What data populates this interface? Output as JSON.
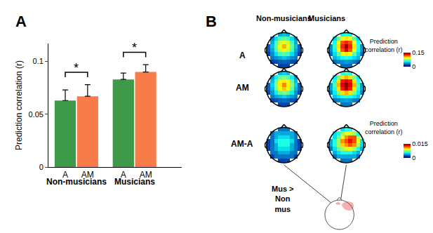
{
  "chart_data": [
    {
      "type": "bar",
      "title": "A",
      "ylabel": "Prediction correlation (r)",
      "categories": [
        "Non-musicians",
        "Musicians"
      ],
      "series": [
        {
          "name": "A",
          "color": "#3c9a48",
          "values": [
            0.063,
            0.083
          ],
          "errors": [
            0.01,
            0.006
          ]
        },
        {
          "name": "AM",
          "color": "#f77c4a",
          "values": [
            0.067,
            0.09
          ],
          "errors": [
            0.011,
            0.007
          ]
        }
      ],
      "ylim": [
        0,
        0.117
      ],
      "yticks": [
        0,
        0.05,
        0.1
      ],
      "annotations": [
        {
          "group": "Non-musicians",
          "between": [
            "A",
            "AM"
          ],
          "label": "*"
        },
        {
          "group": "Musicians",
          "between": [
            "A",
            "AM"
          ],
          "label": "*"
        }
      ]
    },
    {
      "type": "heatmap",
      "title": "B",
      "columns": [
        "Non-musicians",
        "Musicians"
      ],
      "rows": [
        "A",
        "AM",
        "AM-A"
      ],
      "colorbars": [
        {
          "rows": [
            "A",
            "AM"
          ],
          "title": [
            "Prediction",
            "correlation (r)"
          ],
          "range": [
            0,
            0.15
          ],
          "ticks": [
            0,
            0.15
          ]
        },
        {
          "rows": [
            "AM-A"
          ],
          "title": [
            "Prediction",
            "correlation (r)"
          ],
          "range": [
            0,
            0.015
          ],
          "ticks": [
            0,
            0.015
          ]
        }
      ],
      "maps": [
        {
          "row": "A",
          "column": "Non-musicians",
          "cells": [
            [
              null,
              null,
              null,
              0.02,
              0.02,
              0.02,
              null,
              null,
              null
            ],
            [
              null,
              0.02,
              0.022,
              0.025,
              0.027,
              0.025,
              0.022,
              0.02,
              null
            ],
            [
              null,
              0.03,
              0.035,
              0.04,
              0.045,
              0.04,
              0.035,
              0.03,
              null
            ],
            [
              0.02,
              0.035,
              0.05,
              0.065,
              0.07,
              0.065,
              0.05,
              0.035,
              0.02
            ],
            [
              0.025,
              0.04,
              0.065,
              0.085,
              0.095,
              0.085,
              0.065,
              0.04,
              0.025
            ],
            [
              0.025,
              0.045,
              0.07,
              0.09,
              0.105,
              0.09,
              0.07,
              0.045,
              0.025
            ],
            [
              null,
              0.04,
              0.065,
              0.085,
              0.09,
              0.085,
              0.065,
              0.04,
              null
            ],
            [
              null,
              0.035,
              0.05,
              0.065,
              0.07,
              0.065,
              0.05,
              0.035,
              null
            ],
            [
              null,
              null,
              null,
              0.04,
              0.045,
              0.04,
              null,
              null,
              null
            ]
          ]
        },
        {
          "row": "A",
          "column": "Musicians",
          "cells": [
            [
              null,
              null,
              null,
              0.028,
              0.028,
              0.028,
              null,
              null,
              null
            ],
            [
              null,
              0.028,
              0.031,
              0.035,
              0.038,
              0.035,
              0.031,
              0.028,
              null
            ],
            [
              null,
              0.042,
              0.049,
              0.056,
              0.063,
              0.056,
              0.049,
              0.042,
              null
            ],
            [
              0.028,
              0.049,
              0.07,
              0.091,
              0.098,
              0.091,
              0.07,
              0.049,
              0.028
            ],
            [
              0.035,
              0.056,
              0.091,
              0.119,
              0.133,
              0.119,
              0.091,
              0.056,
              0.035
            ],
            [
              0.035,
              0.063,
              0.098,
              0.126,
              0.147,
              0.126,
              0.098,
              0.063,
              0.035
            ],
            [
              null,
              0.056,
              0.091,
              0.119,
              0.126,
              0.119,
              0.091,
              0.056,
              null
            ],
            [
              null,
              0.049,
              0.07,
              0.091,
              0.098,
              0.091,
              0.07,
              0.049,
              null
            ],
            [
              null,
              null,
              null,
              0.056,
              0.063,
              0.056,
              null,
              null,
              null
            ]
          ]
        },
        {
          "row": "AM",
          "column": "Non-musicians",
          "cells": [
            [
              null,
              null,
              null,
              0.021,
              0.021,
              0.021,
              null,
              null,
              null
            ],
            [
              null,
              0.021,
              0.024,
              0.027,
              0.029,
              0.027,
              0.024,
              0.021,
              null
            ],
            [
              null,
              0.032,
              0.037,
              0.043,
              0.048,
              0.043,
              0.037,
              0.032,
              null
            ],
            [
              0.021,
              0.037,
              0.054,
              0.07,
              0.075,
              0.07,
              0.054,
              0.037,
              0.021
            ],
            [
              0.027,
              0.043,
              0.07,
              0.091,
              0.102,
              0.091,
              0.07,
              0.043,
              0.027
            ],
            [
              0.027,
              0.048,
              0.075,
              0.096,
              0.112,
              0.096,
              0.075,
              0.048,
              0.027
            ],
            [
              null,
              0.043,
              0.07,
              0.091,
              0.096,
              0.091,
              0.07,
              0.043,
              null
            ],
            [
              null,
              0.037,
              0.054,
              0.07,
              0.075,
              0.07,
              0.054,
              0.037,
              null
            ],
            [
              null,
              null,
              null,
              0.043,
              0.048,
              0.043,
              null,
              null,
              null
            ]
          ]
        },
        {
          "row": "AM",
          "column": "Musicians",
          "cells": [
            [
              null,
              null,
              null,
              0.03,
              0.03,
              0.03,
              null,
              null,
              null
            ],
            [
              null,
              0.03,
              0.033,
              0.038,
              0.04,
              0.038,
              0.033,
              0.03,
              null
            ],
            [
              null,
              0.045,
              0.053,
              0.06,
              0.068,
              0.06,
              0.053,
              0.045,
              null
            ],
            [
              0.03,
              0.053,
              0.075,
              0.098,
              0.105,
              0.098,
              0.075,
              0.053,
              0.03
            ],
            [
              0.038,
              0.06,
              0.098,
              0.128,
              0.143,
              0.128,
              0.098,
              0.06,
              0.038
            ],
            [
              0.038,
              0.068,
              0.105,
              0.135,
              0.15,
              0.135,
              0.105,
              0.068,
              0.038
            ],
            [
              null,
              0.06,
              0.098,
              0.128,
              0.135,
              0.128,
              0.098,
              0.06,
              null
            ],
            [
              null,
              0.053,
              0.075,
              0.098,
              0.105,
              0.098,
              0.075,
              0.053,
              null
            ],
            [
              null,
              null,
              null,
              0.06,
              0.068,
              0.06,
              null,
              null,
              null
            ]
          ]
        },
        {
          "row": "AM-A",
          "column": "Non-musicians",
          "cells": [
            [
              null,
              null,
              null,
              0.002,
              0.002,
              0.002,
              null,
              null,
              null
            ],
            [
              null,
              0.002,
              0.003,
              0.003,
              0.003,
              0.003,
              0.003,
              0.002,
              null
            ],
            [
              null,
              0.003,
              0.003,
              0.004,
              0.004,
              0.004,
              0.003,
              0.003,
              null
            ],
            [
              0.002,
              0.003,
              0.004,
              0.005,
              0.005,
              0.005,
              0.004,
              0.003,
              0.002
            ],
            [
              0.002,
              0.003,
              0.004,
              0.006,
              0.006,
              0.006,
              0.004,
              0.003,
              0.002
            ],
            [
              0.002,
              0.003,
              0.005,
              0.006,
              0.006,
              0.006,
              0.005,
              0.003,
              0.002
            ],
            [
              null,
              0.003,
              0.004,
              0.005,
              0.005,
              0.005,
              0.004,
              0.003,
              null
            ],
            [
              null,
              0.003,
              0.004,
              0.004,
              0.004,
              0.004,
              0.004,
              0.003,
              null
            ],
            [
              null,
              null,
              null,
              0.003,
              0.003,
              0.003,
              null,
              null,
              null
            ]
          ]
        },
        {
          "row": "AM-A",
          "column": "Musicians",
          "cells": [
            [
              null,
              null,
              null,
              0.003,
              0.003,
              0.003,
              null,
              null,
              null
            ],
            [
              null,
              0.003,
              0.004,
              0.004,
              0.004,
              0.004,
              0.004,
              0.003,
              null
            ],
            [
              null,
              0.004,
              0.005,
              0.006,
              0.006,
              0.006,
              0.005,
              0.004,
              null
            ],
            [
              0.003,
              0.005,
              0.007,
              0.008,
              0.009,
              0.009,
              0.008,
              0.006,
              0.004
            ],
            [
              0.004,
              0.006,
              0.008,
              0.01,
              0.011,
              0.012,
              0.011,
              0.008,
              0.005
            ],
            [
              0.004,
              0.006,
              0.008,
              0.011,
              0.012,
              0.013,
              0.012,
              0.009,
              0.005
            ],
            [
              null,
              0.005,
              0.007,
              0.009,
              0.011,
              0.012,
              0.012,
              0.008,
              null
            ],
            [
              null,
              0.005,
              0.006,
              0.008,
              0.009,
              0.009,
              0.008,
              0.006,
              null
            ],
            [
              null,
              null,
              null,
              0.005,
              0.006,
              0.006,
              null,
              null,
              null
            ]
          ]
        }
      ],
      "inset": {
        "label": [
          "Mus >",
          "Non",
          "mus"
        ]
      }
    }
  ]
}
